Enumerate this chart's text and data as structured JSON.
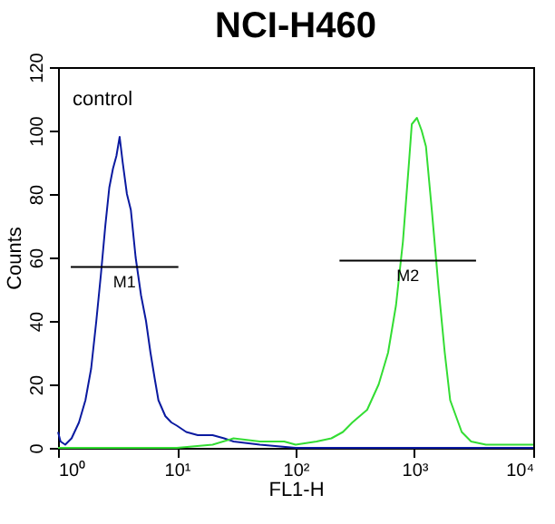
{
  "chart_data": {
    "type": "line",
    "title": "NCI-H460",
    "xlabel": "FL1-H",
    "ylabel": "Counts",
    "log": "x",
    "grid": false,
    "marker": "none",
    "line_style": "solid",
    "xlim": [
      1,
      10000
    ],
    "ylim": [
      0,
      120
    ],
    "xticks": [
      {
        "value": 1,
        "label": "10⁰"
      },
      {
        "value": 10,
        "label": "10¹"
      },
      {
        "value": 100,
        "label": "10²"
      },
      {
        "value": 1000,
        "label": "10³"
      },
      {
        "value": 10000,
        "label": "10⁴"
      }
    ],
    "yticks": [
      0,
      20,
      40,
      60,
      80,
      100,
      120
    ],
    "annotations": [
      "control"
    ],
    "series": [
      {
        "color": "#0a1aa0",
        "x": [
          1.0,
          1.05,
          1.15,
          1.3,
          1.5,
          1.7,
          1.9,
          2.1,
          2.3,
          2.5,
          2.7,
          2.9,
          3.1,
          3.3,
          3.5,
          3.8,
          4.1,
          4.5,
          5,
          5.5,
          6,
          6.5,
          7,
          8,
          9,
          10,
          12,
          15,
          20,
          25,
          30,
          50,
          100,
          1000,
          10000
        ],
        "values": [
          5,
          2,
          1,
          3,
          8,
          15,
          25,
          40,
          55,
          70,
          82,
          88,
          92,
          98,
          90,
          80,
          75,
          60,
          48,
          40,
          30,
          22,
          15,
          10,
          8,
          7,
          5,
          4,
          4,
          3,
          2,
          1,
          0,
          0,
          0
        ]
      },
      {
        "color": "#33dd33",
        "x": [
          1,
          10,
          20,
          30,
          50,
          80,
          100,
          150,
          200,
          250,
          300,
          400,
          500,
          600,
          700,
          800,
          900,
          950,
          1050,
          1150,
          1250,
          1400,
          1600,
          1800,
          2000,
          2500,
          3000,
          4000,
          6000,
          10000
        ],
        "values": [
          0,
          0,
          1,
          3,
          2,
          2,
          1,
          2,
          3,
          5,
          8,
          12,
          20,
          30,
          45,
          65,
          90,
          102,
          104,
          100,
          95,
          75,
          50,
          30,
          15,
          5,
          2,
          1,
          1,
          1
        ]
      },
      {
        "name": "M1",
        "color": "#000000",
        "x": [
          1.28,
          10.3
        ],
        "values": [
          57,
          57
        ]
      },
      {
        "name": "M2",
        "color": "#000000",
        "x": [
          234,
          3300
        ],
        "values": [
          59,
          59
        ]
      }
    ]
  }
}
